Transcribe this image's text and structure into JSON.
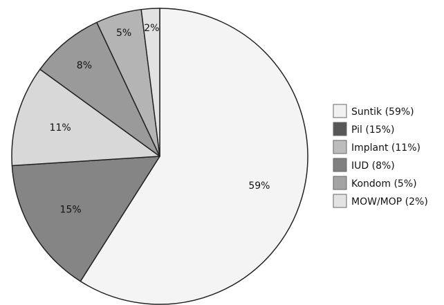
{
  "chart_data": {
    "type": "pie",
    "title": "",
    "legend_position": "right",
    "start_angle_deg": 0,
    "direction": "clockwise",
    "slices": [
      {
        "label": "Suntik",
        "value": 59,
        "data_label": "59%",
        "legend": "Suntik (59%)",
        "color": "#f4f4f4"
      },
      {
        "label": "Pil",
        "value": 15,
        "data_label": "15%",
        "legend": "Pil (15%)",
        "color": "#858585"
      },
      {
        "label": "Implant",
        "value": 11,
        "data_label": "11%",
        "legend": "Implant (11%)",
        "color": "#d8d8d8"
      },
      {
        "label": "IUD",
        "value": 8,
        "data_label": "8%",
        "legend": "IUD (8%)",
        "color": "#9a9a9a"
      },
      {
        "label": "Kondom",
        "value": 5,
        "data_label": "5%",
        "legend": "Kondom (5%)",
        "color": "#b4b4b4"
      },
      {
        "label": "MOW/MOP",
        "value": 2,
        "data_label": "2%",
        "legend": "MOW/MOP (2%)",
        "color": "#e2e2e2"
      }
    ],
    "legend_swatch_colors": [
      "#f1f1f1",
      "#575757",
      "#bcbcbc",
      "#808080",
      "#a3a3a3",
      "#e3e3e3"
    ],
    "edge_color": "#222222"
  }
}
